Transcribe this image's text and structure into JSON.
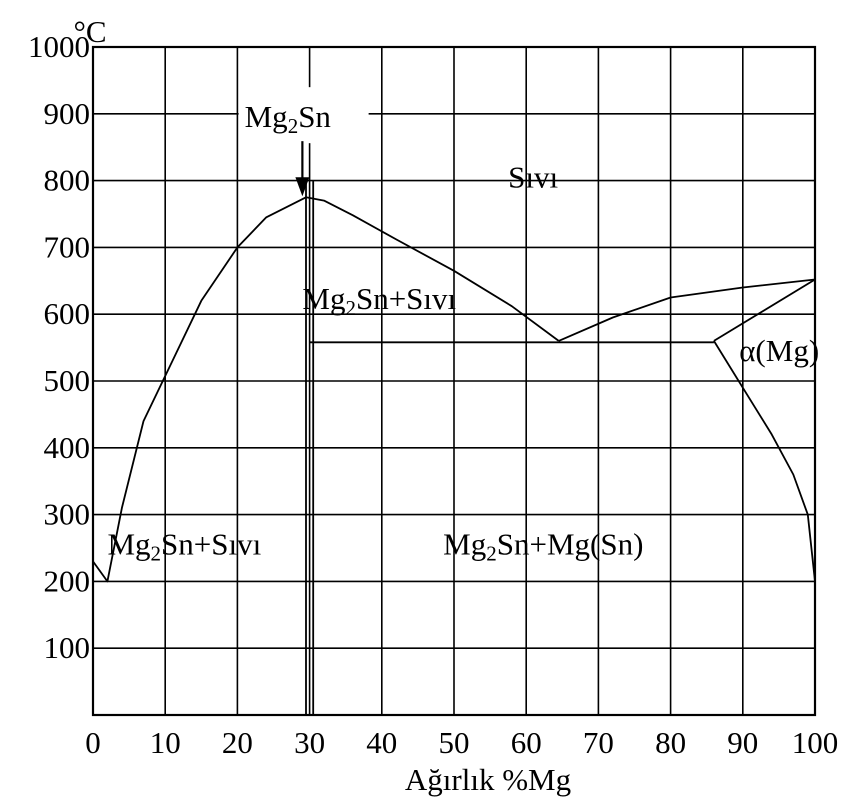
{
  "chart_data": {
    "type": "line",
    "title": "",
    "xlabel": "Ağırlık %Mg",
    "ylabel": "°C",
    "xlim": [
      0,
      100
    ],
    "ylim": [
      0,
      1000
    ],
    "xticks": [
      "0",
      "10",
      "20",
      "30",
      "40",
      "50",
      "60",
      "70",
      "80",
      "90",
      "100"
    ],
    "yticks": [
      "100",
      "200",
      "300",
      "400",
      "500",
      "600",
      "700",
      "800",
      "900",
      "1000"
    ],
    "grid": true,
    "series": [
      {
        "values": [
          [
            0,
            230
          ],
          [
            2,
            200
          ],
          [
            4,
            310
          ],
          [
            7,
            440
          ],
          [
            11,
            530
          ],
          [
            15,
            620
          ],
          [
            20,
            700
          ],
          [
            24,
            745
          ],
          [
            29.5,
            775
          ],
          [
            32,
            770
          ],
          [
            36,
            748
          ],
          [
            42,
            712
          ],
          [
            50,
            665
          ],
          [
            58,
            612
          ],
          [
            64.5,
            560
          ]
        ]
      },
      {
        "values": [
          [
            64.5,
            560
          ],
          [
            72,
            595
          ],
          [
            80,
            625
          ],
          [
            90,
            640
          ],
          [
            100,
            652
          ]
        ]
      },
      {
        "values": [
          [
            86,
            560
          ],
          [
            100,
            652
          ]
        ]
      },
      {
        "values": [
          [
            30,
            558
          ],
          [
            86,
            558
          ]
        ]
      },
      {
        "values": [
          [
            86,
            560
          ],
          [
            90,
            490
          ],
          [
            94,
            420
          ],
          [
            97,
            360
          ],
          [
            99,
            300
          ],
          [
            100,
            200
          ]
        ]
      },
      {
        "values": [
          [
            29.5,
            0
          ],
          [
            29.5,
            800
          ]
        ]
      },
      {
        "values": [
          [
            30.5,
            0
          ],
          [
            30.5,
            800
          ]
        ]
      }
    ],
    "annotations": [
      {
        "text": "Sıvı",
        "x": 57.5,
        "y": 790
      },
      {
        "text_main": "Mg",
        "sub": "2",
        "text_rest": "Sn+Sıvı",
        "x": 29,
        "y": 608
      },
      {
        "text_main": "Mg",
        "sub": "2",
        "text_rest": "Sn+Sıvı",
        "x": 2,
        "y": 240
      },
      {
        "text_main": "Mg",
        "sub": "2",
        "text_rest": "Sn+Mg(Sn)",
        "x": 48.5,
        "y": 240
      },
      {
        "text": "α(Mg)",
        "x": 89.5,
        "y": 530
      },
      {
        "text_main": "Mg",
        "sub": "2",
        "text_rest": "Sn",
        "x": 21,
        "y": 880,
        "arrow_to": [
          29,
          775
        ]
      }
    ]
  }
}
